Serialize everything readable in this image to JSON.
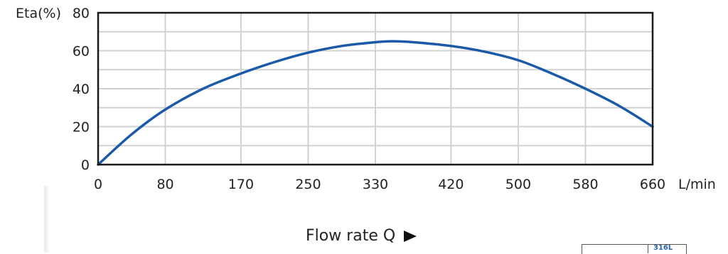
{
  "chart_data": {
    "type": "line",
    "title": "",
    "ylabel": "Eta(%)",
    "xlabel": "Flow rate Q",
    "x_unit": "L/min",
    "x_ticks": [
      "0",
      "80",
      "170",
      "250",
      "330",
      "420",
      "500",
      "580",
      "660"
    ],
    "y_ticks": [
      "0",
      "20",
      "40",
      "60",
      "80"
    ],
    "xlim": [
      0,
      660
    ],
    "ylim": [
      0,
      80
    ],
    "grid": true,
    "series": [
      {
        "x": [
          0,
          40,
          80,
          125,
          170,
          210,
          250,
          290,
          330,
          350,
          375,
          420,
          460,
          500,
          540,
          580,
          620,
          660
        ],
        "y": [
          0,
          16,
          29,
          40,
          48,
          54,
          59,
          62.5,
          64.5,
          65,
          64.5,
          62.5,
          59.5,
          55,
          48,
          40,
          31,
          20
        ],
        "color": "#1a5aa8"
      }
    ]
  },
  "footer": {
    "label": "Flow rate Q",
    "arrow_icon": "right-arrow-icon"
  },
  "corner_badge": {
    "text": "316L"
  }
}
